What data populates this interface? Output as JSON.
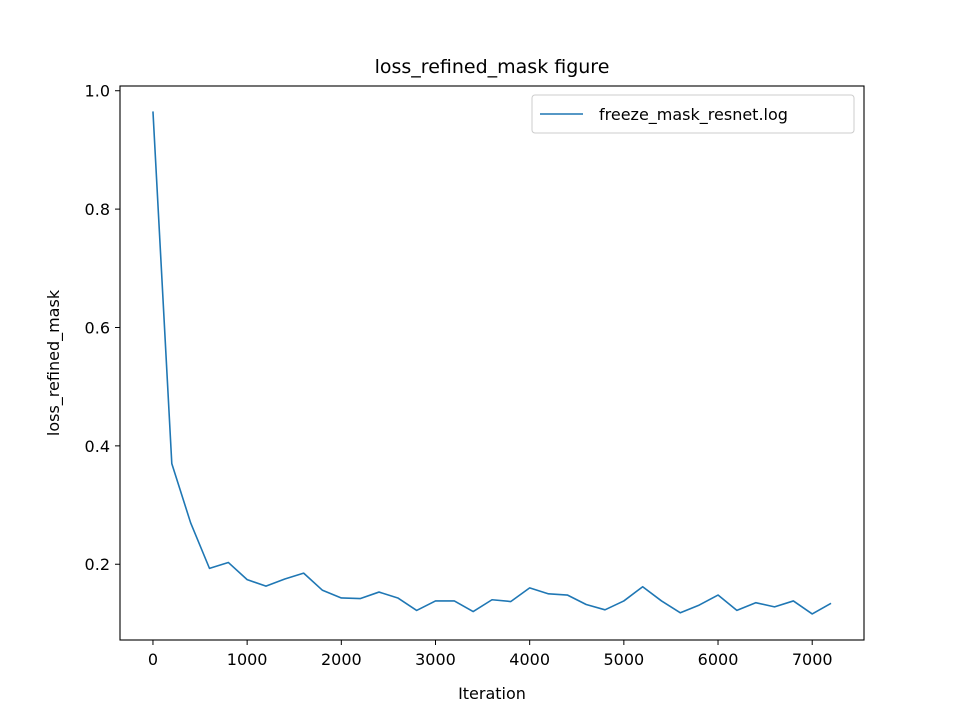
{
  "chart_data": {
    "type": "line",
    "title": "loss_refined_mask figure",
    "xlabel": "Iteration",
    "ylabel": "loss_refined_mask",
    "xlim": [
      -350,
      7550
    ],
    "ylim": [
      0.072,
      1.008
    ],
    "xticks": [
      0,
      1000,
      2000,
      3000,
      4000,
      5000,
      6000,
      7000
    ],
    "yticks": [
      0.2,
      0.4,
      0.6,
      0.8,
      1.0
    ],
    "ytick_labels": [
      "0.2",
      "0.4",
      "0.6",
      "0.8",
      "1.0"
    ],
    "grid": false,
    "legend_position": "top-right",
    "series": [
      {
        "name": "freeze_mask_resnet.log",
        "color": "#1f77b4",
        "x": [
          0,
          200,
          400,
          600,
          800,
          1000,
          1200,
          1400,
          1600,
          1800,
          2000,
          2200,
          2400,
          2600,
          2800,
          3000,
          3200,
          3400,
          3600,
          3800,
          4000,
          4200,
          4400,
          4600,
          4800,
          5000,
          5200,
          5400,
          5600,
          5800,
          6000,
          6200,
          6400,
          6600,
          6800,
          7000,
          7200
        ],
        "y": [
          0.965,
          0.37,
          0.27,
          0.193,
          0.203,
          0.174,
          0.163,
          0.175,
          0.185,
          0.156,
          0.143,
          0.142,
          0.153,
          0.143,
          0.122,
          0.138,
          0.138,
          0.12,
          0.14,
          0.137,
          0.16,
          0.15,
          0.148,
          0.132,
          0.123,
          0.138,
          0.162,
          0.138,
          0.118,
          0.131,
          0.148,
          0.122,
          0.135,
          0.128,
          0.138,
          0.116,
          0.134
        ]
      }
    ]
  }
}
